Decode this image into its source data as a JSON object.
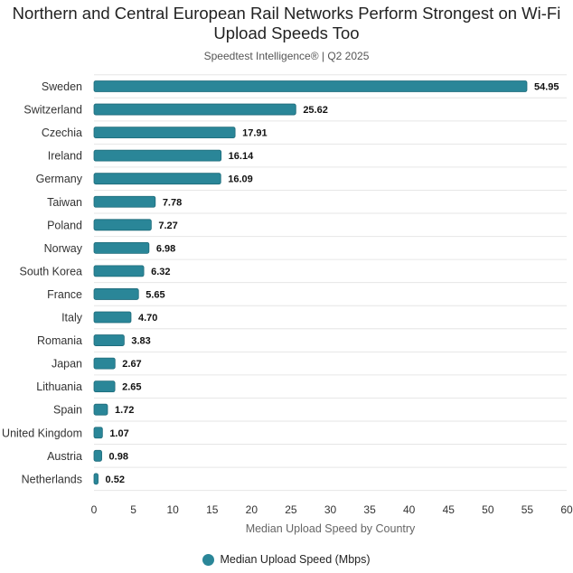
{
  "chart_data": {
    "type": "bar",
    "orientation": "horizontal",
    "title": "Northern and Central European Rail Networks Perform Strongest on Wi-Fi Upload Speeds Too",
    "subtitle": "Speedtest Intelligence® | Q2 2025",
    "xlabel": "Median Upload Speed by Country",
    "ylabel": "",
    "xlim": [
      0,
      60
    ],
    "xticks": [
      0,
      5,
      10,
      15,
      20,
      25,
      30,
      35,
      40,
      45,
      50,
      55,
      60
    ],
    "grid": true,
    "legend_position": "bottom",
    "categories": [
      "Sweden",
      "Switzerland",
      "Czechia",
      "Ireland",
      "Germany",
      "Taiwan",
      "Poland",
      "Norway",
      "South Korea",
      "France",
      "Italy",
      "Romania",
      "Japan",
      "Lithuania",
      "Spain",
      "United Kingdom",
      "Austria",
      "Netherlands"
    ],
    "series": [
      {
        "name": "Median Upload Speed (Mbps)",
        "color": "#2a8698",
        "values": [
          54.95,
          25.62,
          17.91,
          16.14,
          16.09,
          7.78,
          7.27,
          6.98,
          6.32,
          5.65,
          4.7,
          3.83,
          2.67,
          2.65,
          1.72,
          1.07,
          0.98,
          0.52
        ],
        "labels": [
          "54.95",
          "25.62",
          "17.91",
          "16.14",
          "16.09",
          "7.78",
          "7.27",
          "6.98",
          "6.32",
          "5.65",
          "4.70",
          "3.83",
          "2.67",
          "2.65",
          "1.72",
          "1.07",
          "0.98",
          "0.52"
        ]
      }
    ]
  }
}
